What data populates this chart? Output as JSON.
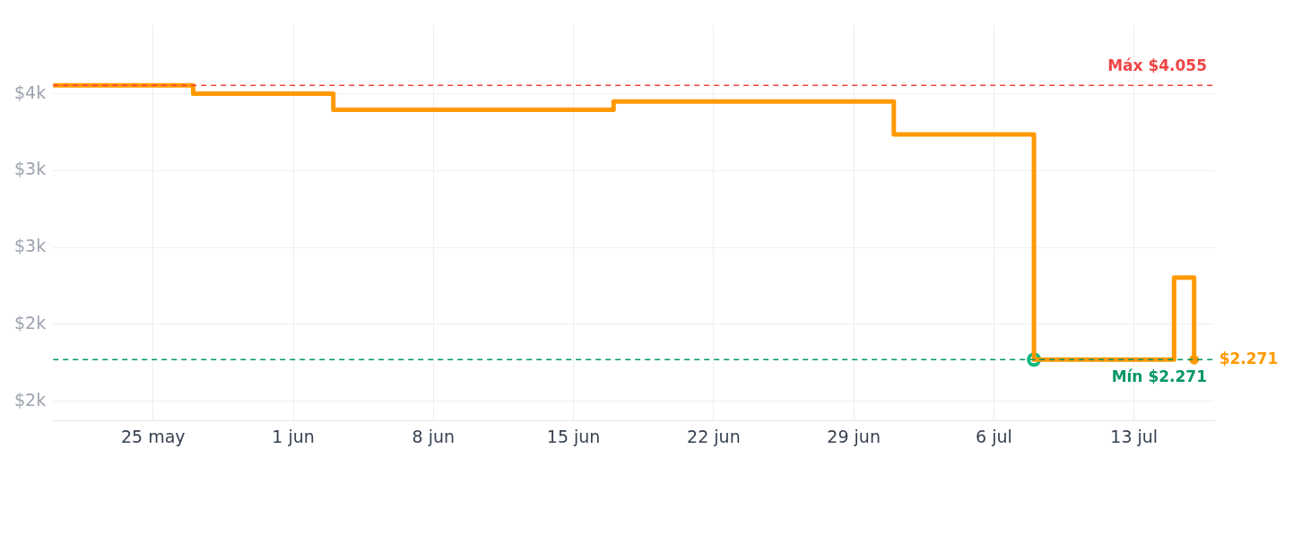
{
  "chart_data": {
    "type": "step",
    "x": [
      "--05-20",
      "--05-27",
      "--06-03",
      "--06-17",
      "--07-01",
      "--07-08",
      "--07-15",
      "--07-16"
    ],
    "series": [
      {
        "color": "#ff9900",
        "values": [
          4055,
          4000,
          3895,
          3950,
          3735,
          2271,
          2805,
          2271
        ],
        "marker": "none"
      },
      {
        "type": "scatter",
        "x": [
          "--07-08"
        ],
        "color": "#10b981",
        "values": [
          2271
        ],
        "marker": "circle"
      },
      {
        "type": "scatter",
        "x": [
          "--07-16"
        ],
        "color": "#ff9900",
        "values": [
          2271
        ],
        "marker": "circle"
      }
    ],
    "xlim": [
      "--05-20",
      "--07-17"
    ],
    "xticks": [
      {
        "value": "--05-25",
        "label": "25 may"
      },
      {
        "value": "--06-01",
        "label": "1 jun"
      },
      {
        "value": "--06-08",
        "label": "8 jun"
      },
      {
        "value": "--06-15",
        "label": "15 jun"
      },
      {
        "value": "--06-22",
        "label": "22 jun"
      },
      {
        "value": "--06-29",
        "label": "29 jun"
      },
      {
        "value": "--07-06",
        "label": "6 jul"
      },
      {
        "value": "--07-13",
        "label": "13 jul"
      }
    ],
    "ylim": [
      1875,
      4450
    ],
    "yticks": [
      {
        "value": 2000,
        "label": "$2k"
      },
      {
        "value": 2500,
        "label": "$2k"
      },
      {
        "value": 3000,
        "label": "$3k"
      },
      {
        "value": 3500,
        "label": "$3k"
      },
      {
        "value": 4000,
        "label": "$4k"
      }
    ],
    "ref_lines": [
      {
        "axis": "y",
        "value": 4055,
        "label": "Máx $4.055",
        "color": "#ef4444",
        "line_style": "dashed"
      },
      {
        "axis": "y",
        "value": 2271,
        "label": "Mín $2.271",
        "color": "#059669",
        "line_style": "dashed"
      }
    ],
    "annotations": [
      {
        "text": "$2.271",
        "x": "--07-16",
        "y": 2271
      }
    ],
    "grid": true,
    "legend": false,
    "line_style": "solid"
  }
}
